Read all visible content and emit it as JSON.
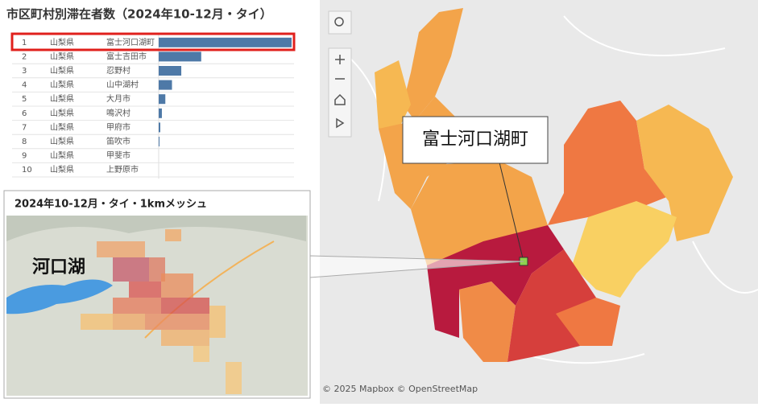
{
  "ranking": {
    "title": "市区町村別滞在者数（2024年10-12月・タイ）",
    "ranks": [
      1,
      2,
      3,
      4,
      5,
      6,
      7,
      8,
      9,
      10
    ],
    "prefectures": [
      "山梨県",
      "山梨県",
      "山梨県",
      "山梨県",
      "山梨県",
      "山梨県",
      "山梨県",
      "山梨県",
      "山梨県",
      "山梨県"
    ],
    "municipalities": [
      "富士河口湖町",
      "富士吉田市",
      "忍野村",
      "山中湖村",
      "大月市",
      "鳴沢村",
      "甲府市",
      "笛吹市",
      "甲斐市",
      "上野原市"
    ],
    "values": [
      100,
      32,
      17,
      10,
      5,
      2.4,
      1.2,
      0.6,
      0,
      0
    ],
    "xlim": [
      0,
      100
    ],
    "color": "#4e79a7"
  },
  "heatmap": {
    "title": "2024年10-12月・タイ・1kmメッシュ",
    "label": "河口湖"
  },
  "map": {
    "callout": "富士河口湖町",
    "attribution": "© 2025 Mapbox © OpenStreetMap"
  }
}
